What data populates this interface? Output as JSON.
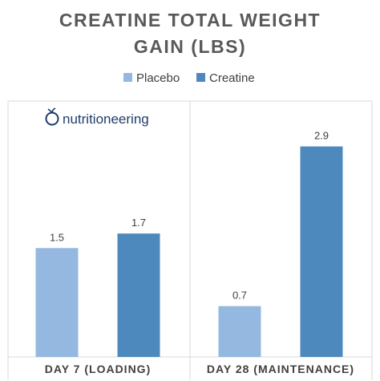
{
  "logo": {
    "text": "nutritioneering",
    "color": "#1f3d6b",
    "icon": "apple-icon"
  },
  "colors": {
    "placebo": "#95b8e0",
    "creatine": "#4e89be",
    "panel_border": "#d9d9d9",
    "title": "#595959"
  },
  "chart_data": {
    "type": "bar",
    "title_lines": [
      "CREATINE TOTAL WEIGHT",
      "GAIN (LBS)"
    ],
    "categories": [
      "DAY 7 (LOADING)",
      "DAY 28 (MAINTENANCE)"
    ],
    "series": [
      {
        "name": "Placebo",
        "values": [
          1.5,
          0.7
        ],
        "labels": [
          "1.5",
          "0.7"
        ]
      },
      {
        "name": "Creatine",
        "values": [
          1.7,
          2.9
        ],
        "labels": [
          "1.7",
          "2.9"
        ]
      }
    ],
    "xlabel": "",
    "ylabel": "",
    "ylim": [
      0,
      3.3
    ],
    "grid": false,
    "legend": "top-center"
  }
}
